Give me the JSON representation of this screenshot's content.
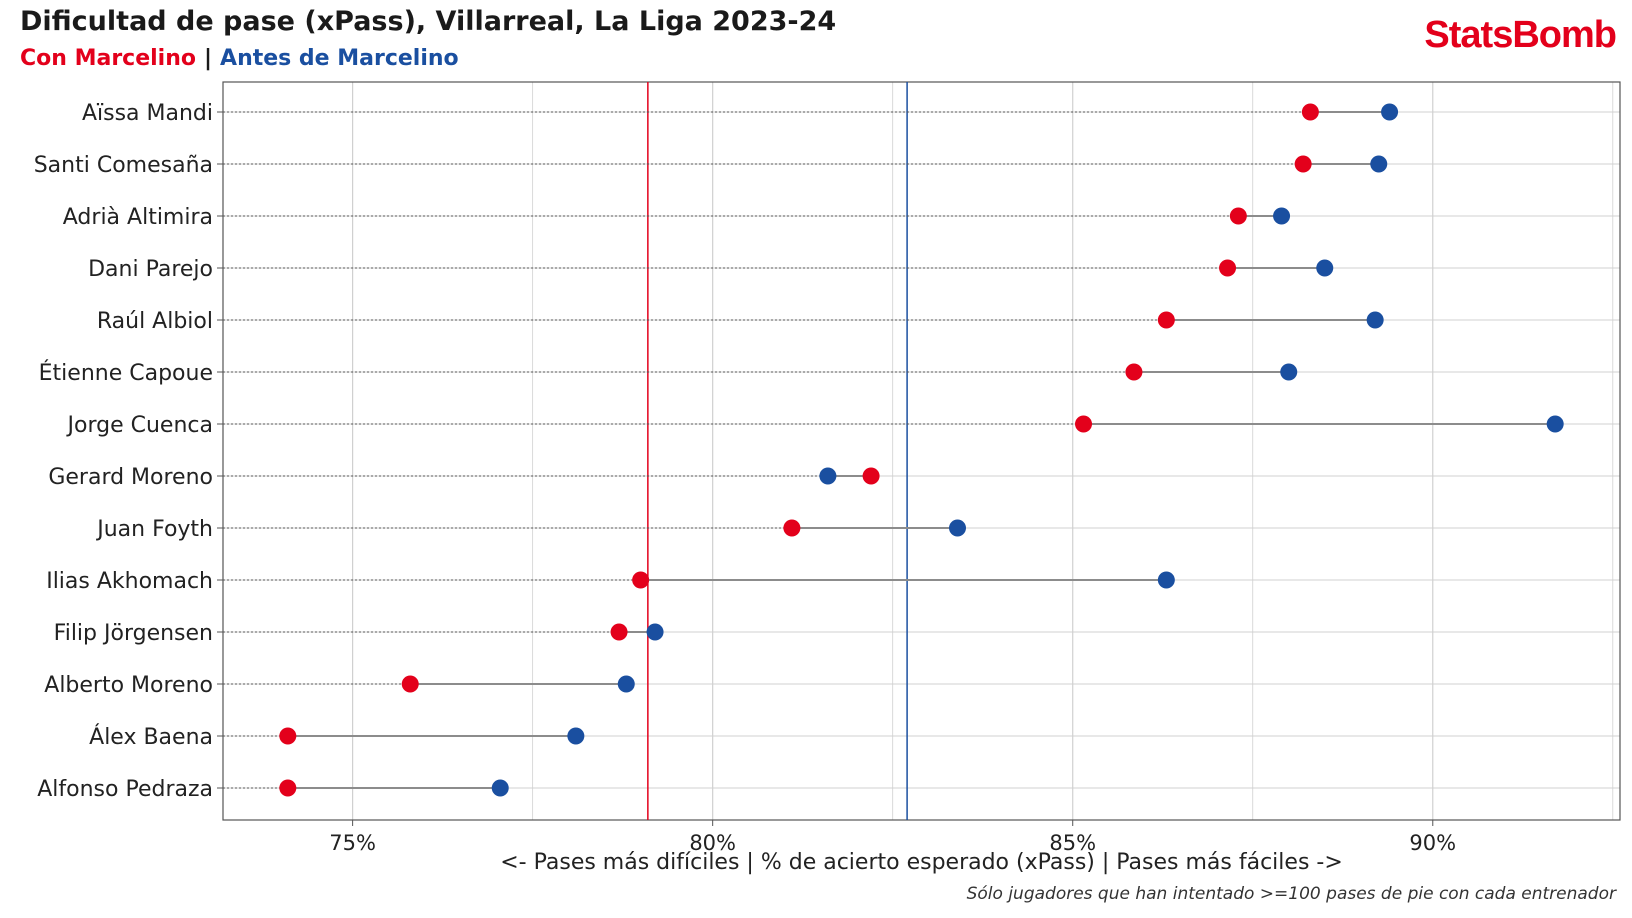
{
  "header": {
    "title": "Dificultad de pase (xPass), Villarreal, La Liga 2023-24",
    "legend_with": "Con Marcelino",
    "legend_sep": "|",
    "legend_before": "Antes de Marcelino",
    "logo": "StatsBomb"
  },
  "footnote": "Sólo jugadores que han intentado >=100 pases de pie con cada entrenador",
  "colors": {
    "with": "#e3001b",
    "before": "#1a4fa0",
    "connector": "#8c8c8c",
    "grid": "#d0d0d0"
  },
  "chart_data": {
    "type": "scatter",
    "subtype": "dumbbell",
    "title": "Dificultad de pase (xPass), Villarreal, La Liga 2023-24",
    "xlabel": "<- Pases más difíciles | % de acierto esperado (xPass) | Pases más fáciles ->",
    "xlim": [
      73.2,
      92.6
    ],
    "xticks": [
      75,
      80,
      85,
      90
    ],
    "xtick_labels": [
      "75%",
      "80%",
      "85%",
      "90%"
    ],
    "grid": true,
    "players": [
      "Aïssa Mandi",
      "Santi Comesaña",
      "Adrià Altimira",
      "Dani Parejo",
      "Raúl Albiol",
      "Étienne Capoue",
      "Jorge Cuenca",
      "Gerard Moreno",
      "Juan Foyth",
      "Ilias Akhomach",
      "Filip Jörgensen",
      "Alberto Moreno",
      "Álex Baena",
      "Alfonso Pedraza"
    ],
    "series": [
      {
        "name": "Con Marcelino",
        "values": [
          88.3,
          88.2,
          87.3,
          87.15,
          86.3,
          85.85,
          85.15,
          82.2,
          81.1,
          79.0,
          78.7,
          75.8,
          74.1,
          74.1
        ]
      },
      {
        "name": "Antes de Marcelino",
        "values": [
          89.4,
          89.25,
          87.9,
          88.5,
          89.2,
          88.0,
          91.7,
          81.6,
          83.4,
          86.3,
          79.2,
          78.8,
          78.1,
          77.05
        ]
      }
    ],
    "reference_lines": [
      {
        "series": "Con Marcelino",
        "value": 79.1
      },
      {
        "series": "Antes de Marcelino",
        "value": 82.7
      }
    ]
  }
}
